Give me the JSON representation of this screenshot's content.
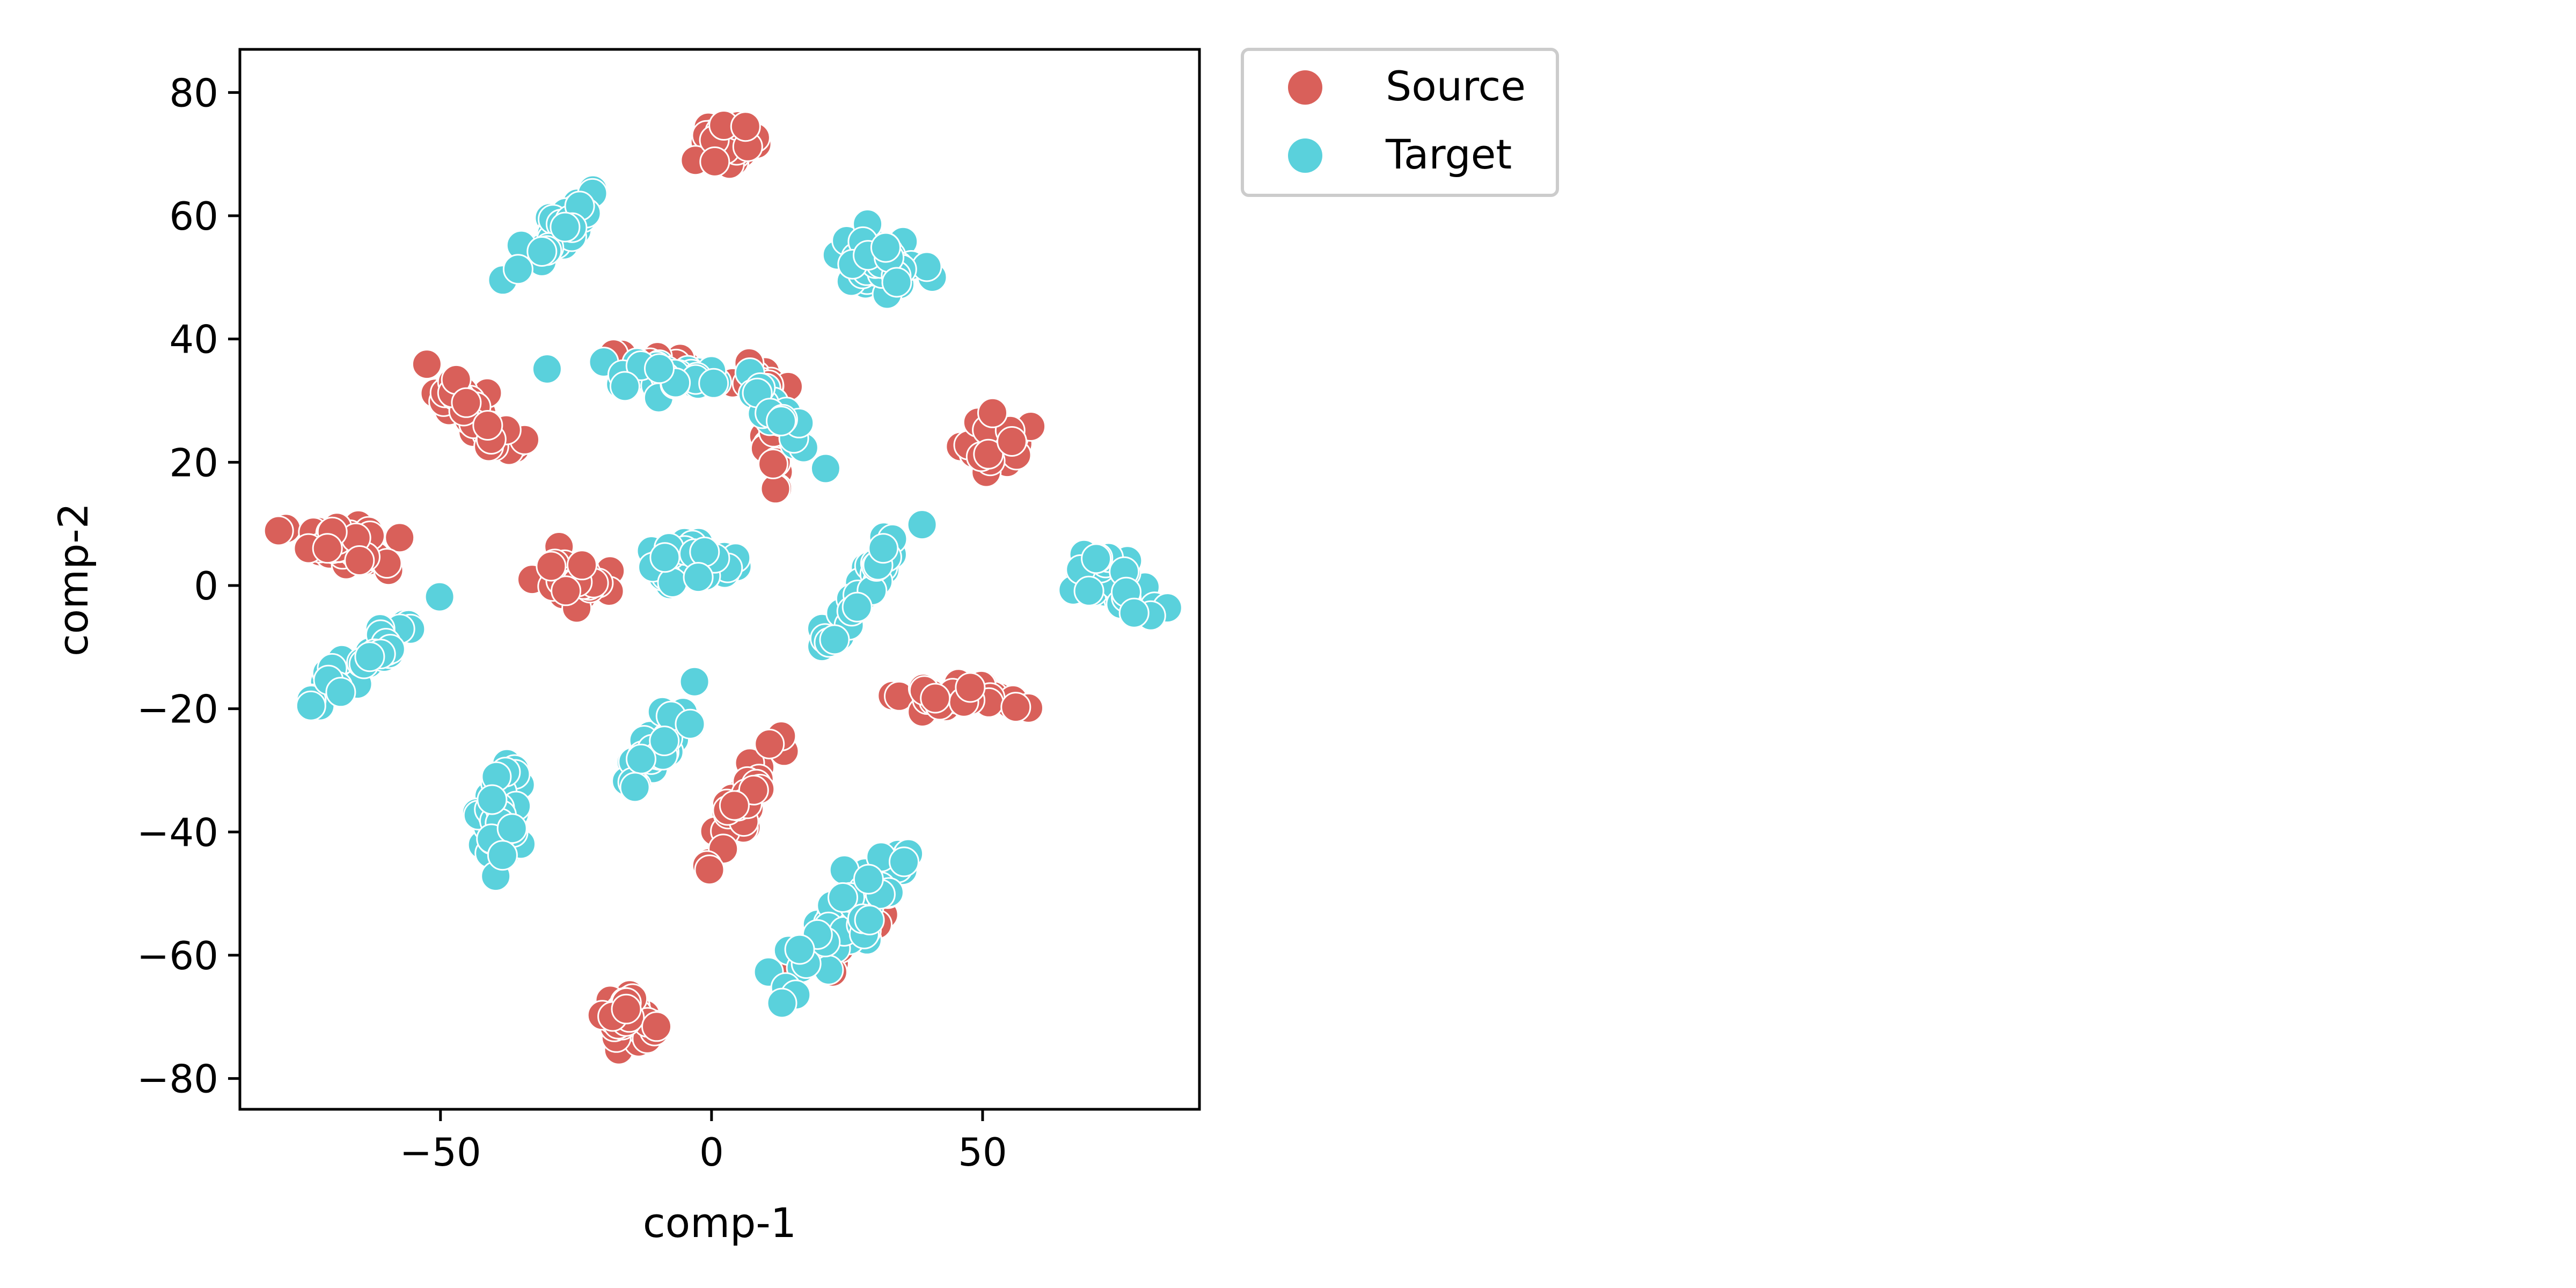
{
  "chart_data": {
    "type": "scatter",
    "xlabel": "comp-1",
    "ylabel": "comp-2",
    "xlim": [
      -87,
      90
    ],
    "ylim": [
      -85,
      87
    ],
    "xticks": [
      -50,
      0,
      50
    ],
    "xtick_labels": [
      "−50",
      "0",
      "50"
    ],
    "yticks": [
      80,
      60,
      40,
      20,
      0,
      -20,
      -40,
      -60,
      -80
    ],
    "ytick_labels": [
      "80",
      "60",
      "40",
      "20",
      "0",
      "−20",
      "−40",
      "−60",
      "−80"
    ],
    "grid": false,
    "legend": {
      "placement": "outside-top-right"
    },
    "series": [
      {
        "name": "Source",
        "color": "#d9605a",
        "clusters": [
          {
            "center": [
              3,
              72
            ],
            "spread": [
              3,
              5
            ],
            "angle": 80,
            "n": 45
          },
          {
            "center": [
              -44,
              28
            ],
            "spread": [
              9,
              3
            ],
            "angle": -40,
            "n": 45
          },
          {
            "center": [
              -68,
              7
            ],
            "spread": [
              9,
              3
            ],
            "angle": -10,
            "n": 50
          },
          {
            "center": [
              -26,
              1
            ],
            "spread": [
              3,
              5
            ],
            "angle": 90,
            "n": 45
          },
          {
            "center": [
              52,
              23
            ],
            "spread": [
              4,
              5
            ],
            "angle": -70,
            "n": 45
          },
          {
            "center": [
              47,
              -18
            ],
            "spread": [
              10,
              2
            ],
            "angle": 0,
            "n": 40
          },
          {
            "center": [
              6,
              -35
            ],
            "spread": [
              9,
              2.5
            ],
            "angle": 55,
            "n": 40
          },
          {
            "center": [
              -15,
              -70
            ],
            "spread": [
              4,
              5
            ],
            "angle": 90,
            "n": 45
          },
          {
            "center": [
              8,
              33
            ],
            "spread": [
              6,
              2
            ],
            "angle": -10,
            "n": 20
          },
          {
            "center": [
              12,
              20
            ],
            "spread": [
              6,
              1.5
            ],
            "angle": -75,
            "n": 10
          },
          {
            "center": [
              -5,
              5
            ],
            "spread": [
              8,
              2
            ],
            "angle": 0,
            "n": 12
          },
          {
            "center": [
              27,
              -55
            ],
            "spread": [
              10,
              3
            ],
            "angle": 40,
            "n": 30
          },
          {
            "center": [
              -10,
              36
            ],
            "spread": [
              8,
              1.5
            ],
            "angle": 0,
            "n": 10
          }
        ]
      },
      {
        "name": "Target",
        "color": "#5ad1dc",
        "clusters": [
          {
            "center": [
              -28,
              58
            ],
            "spread": [
              9,
              2.5
            ],
            "angle": 45,
            "n": 45
          },
          {
            "center": [
              31,
              52
            ],
            "spread": [
              6,
              4
            ],
            "angle": 0,
            "n": 50
          },
          {
            "center": [
              -8,
              34
            ],
            "spread": [
              14,
              2
            ],
            "angle": -3,
            "n": 40
          },
          {
            "center": [
              12,
              28
            ],
            "spread": [
              8,
              2
            ],
            "angle": -50,
            "n": 25
          },
          {
            "center": [
              -5,
              4
            ],
            "spread": [
              8,
              3
            ],
            "angle": 10,
            "n": 40
          },
          {
            "center": [
              28,
              -1
            ],
            "spread": [
              12,
              2
            ],
            "angle": 50,
            "n": 40
          },
          {
            "center": [
              75,
              0
            ],
            "spread": [
              8,
              3.5
            ],
            "angle": -30,
            "n": 40
          },
          {
            "center": [
              -64,
              -12
            ],
            "spread": [
              11,
              2.5
            ],
            "angle": 35,
            "n": 45
          },
          {
            "center": [
              -10,
              -26
            ],
            "spread": [
              10,
              2.5
            ],
            "angle": 50,
            "n": 40
          },
          {
            "center": [
              -39,
              -37
            ],
            "spread": [
              8,
              3
            ],
            "angle": 80,
            "n": 45
          },
          {
            "center": [
              26,
              -53
            ],
            "spread": [
              16,
              4
            ],
            "angle": 40,
            "n": 70
          }
        ]
      }
    ]
  }
}
